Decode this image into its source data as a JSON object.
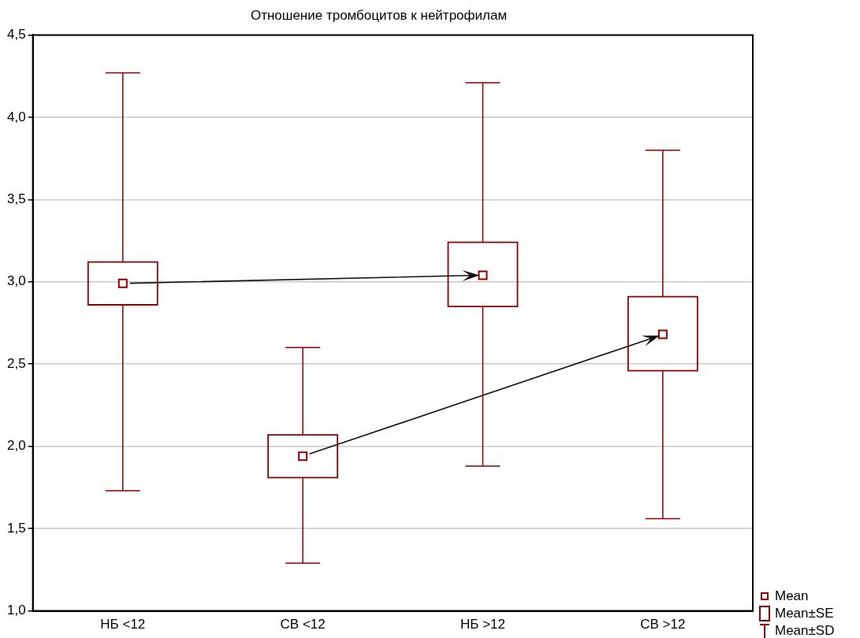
{
  "chart_data": {
    "type": "box",
    "title": "Отношение тромбоцитов к нейтрофилам",
    "categories": [
      "НБ <12",
      "СВ <12",
      "НБ >12",
      "СВ >12"
    ],
    "series": [
      {
        "color": "#8b0000",
        "boxes": [
          {
            "low": 1.73,
            "q1": 2.86,
            "median": 2.99,
            "q3": 3.12,
            "high": 4.27
          },
          {
            "low": 1.29,
            "q1": 1.81,
            "median": 1.94,
            "q3": 2.07,
            "high": 2.6
          },
          {
            "low": 1.88,
            "q1": 2.85,
            "median": 3.04,
            "q3": 3.24,
            "high": 4.21
          },
          {
            "low": 1.56,
            "q1": 2.46,
            "median": 2.68,
            "q3": 2.91,
            "high": 3.8
          }
        ]
      }
    ],
    "ylim": [
      1.0,
      4.5
    ],
    "yticks": [
      {
        "value": 1.0,
        "label": "1,0"
      },
      {
        "value": 1.5,
        "label": "1,5"
      },
      {
        "value": 2.0,
        "label": "2,0"
      },
      {
        "value": 2.5,
        "label": "2,5"
      },
      {
        "value": 3.0,
        "label": "3,0"
      },
      {
        "value": 3.5,
        "label": "3,5"
      },
      {
        "value": 4.0,
        "label": "4,0"
      },
      {
        "value": 4.5,
        "label": "4,5"
      }
    ],
    "grid": "y",
    "marker": "square",
    "annotations": [
      "Mean",
      "Mean±SE",
      "Mean±SD"
    ]
  }
}
